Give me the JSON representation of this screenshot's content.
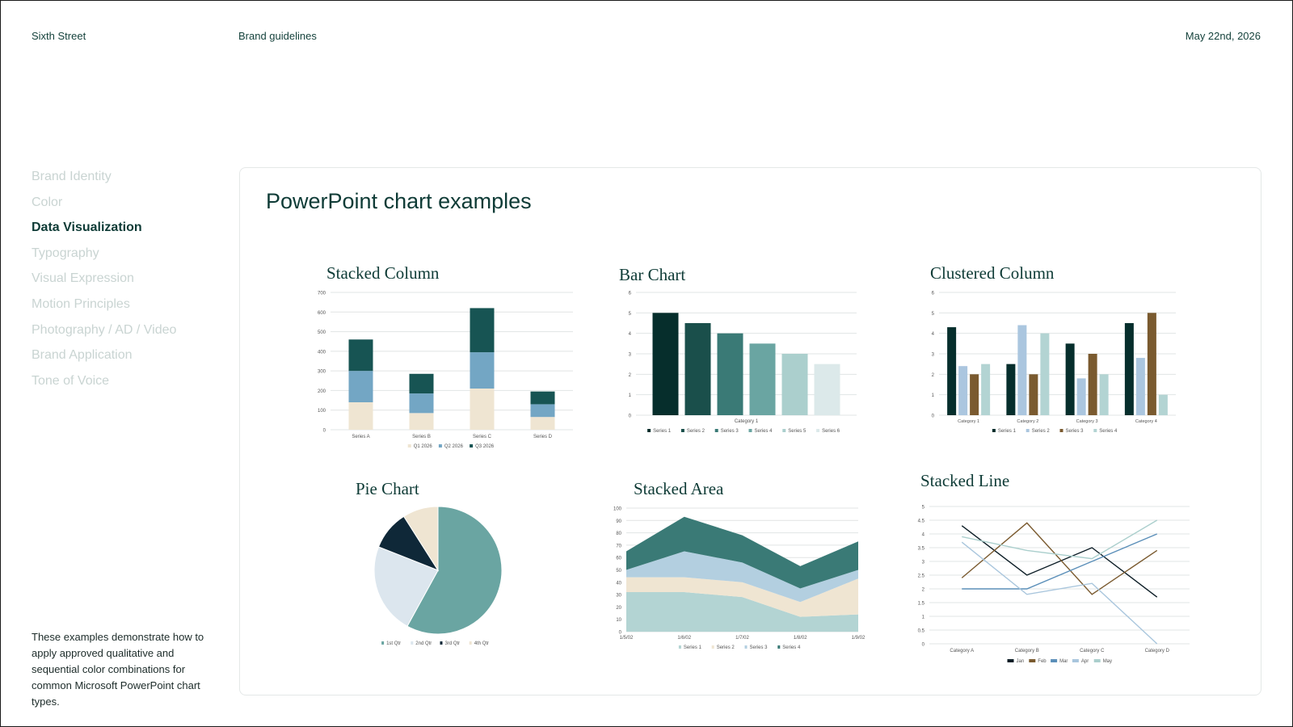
{
  "header": {
    "brand": "Sixth Street",
    "doc_title": "Brand guidelines",
    "date": "May 22nd, 2026"
  },
  "sidebar": {
    "items": [
      {
        "label": "Brand Identity",
        "active": false
      },
      {
        "label": "Color",
        "active": false
      },
      {
        "label": "Data Visualization",
        "active": true
      },
      {
        "label": "Typography",
        "active": false
      },
      {
        "label": "Visual Expression",
        "active": false
      },
      {
        "label": "Motion Principles",
        "active": false
      },
      {
        "label": "Photography / AD / Video",
        "active": false
      },
      {
        "label": "Brand Application",
        "active": false
      },
      {
        "label": "Tone of Voice",
        "active": false
      }
    ],
    "note": "These examples demonstrate how to apply approved qualitative and sequential color combinations for common Microsoft PowerPoint chart types."
  },
  "main": {
    "title": "PowerPoint chart examples"
  },
  "colors": {
    "palette6": [
      "#062e2c",
      "#1a4f4b",
      "#3a7a76",
      "#6aa5a2",
      "#abcfcd",
      "#dce9ea"
    ],
    "cream": "#efe5d2",
    "steel": "#73a6c4",
    "darkteal": "#175453",
    "brown": "#7a5a2f",
    "lightblue": "#abc6df",
    "paleaqua": "#b3d4d3",
    "navy": "#0f2838"
  },
  "chart_data": [
    {
      "id": "stacked-column",
      "type": "bar",
      "stacked": true,
      "title": "Stacked Column",
      "categories": [
        "Series A",
        "Series B",
        "Series C",
        "Series D"
      ],
      "series": [
        {
          "name": "Q1 2026",
          "values": [
            140,
            85,
            210,
            65
          ],
          "color": "#efe5d2"
        },
        {
          "name": "Q2 2026",
          "values": [
            160,
            100,
            185,
            65
          ],
          "color": "#73a6c4"
        },
        {
          "name": "Q3 2026",
          "values": [
            160,
            100,
            225,
            65
          ],
          "color": "#175453"
        }
      ],
      "ylim": [
        0,
        700
      ],
      "yticks": [
        0,
        100,
        200,
        300,
        400,
        500,
        600,
        700
      ],
      "grid": true,
      "legend": "bottom"
    },
    {
      "id": "bar-chart",
      "type": "bar",
      "title": "Bar Chart",
      "categories": [
        "Category 1"
      ],
      "series": [
        {
          "name": "Series 1",
          "values": [
            5
          ],
          "color": "#062e2c"
        },
        {
          "name": "Series 2",
          "values": [
            4.5
          ],
          "color": "#1a4f4b"
        },
        {
          "name": "Series 3",
          "values": [
            4
          ],
          "color": "#3a7a76"
        },
        {
          "name": "Series 4",
          "values": [
            3.5
          ],
          "color": "#6aa5a2"
        },
        {
          "name": "Series 5",
          "values": [
            3
          ],
          "color": "#abcfcd"
        },
        {
          "name": "Series 6",
          "values": [
            2.5
          ],
          "color": "#dce9ea"
        }
      ],
      "ylim": [
        0,
        6
      ],
      "yticks": [
        0,
        1,
        2,
        3,
        4,
        5,
        6
      ],
      "grid": true,
      "legend": "bottom"
    },
    {
      "id": "clustered-column",
      "type": "bar",
      "title": "Clustered Column",
      "categories": [
        "Category 1",
        "Category 2",
        "Category 3",
        "Category 4"
      ],
      "series": [
        {
          "name": "Series 1",
          "values": [
            4.3,
            2.5,
            3.5,
            4.5
          ],
          "color": "#062e2c"
        },
        {
          "name": "Series 2",
          "values": [
            2.4,
            4.4,
            1.8,
            2.8
          ],
          "color": "#abc6df"
        },
        {
          "name": "Series 3",
          "values": [
            2,
            2,
            3,
            5
          ],
          "color": "#7a5a2f"
        },
        {
          "name": "Series 4",
          "values": [
            2.5,
            4,
            2,
            1
          ],
          "color": "#b3d4d3"
        }
      ],
      "ylim": [
        0,
        6
      ],
      "yticks": [
        0,
        1,
        2,
        3,
        4,
        5,
        6
      ],
      "grid": true,
      "legend": "bottom"
    },
    {
      "id": "pie-chart",
      "type": "pie",
      "title": "Pie Chart",
      "categories": [
        "1st Qtr",
        "2nd Qtr",
        "3rd Qtr",
        "4th Qtr"
      ],
      "values": [
        58,
        23,
        10,
        9
      ],
      "colors": [
        "#6aa5a2",
        "#dce6ee",
        "#0f2838",
        "#efe5d2"
      ],
      "legend": "bottom"
    },
    {
      "id": "stacked-area",
      "type": "area",
      "stacked": true,
      "title": "Stacked Area",
      "x": [
        "1/5/02",
        "1/6/02",
        "1/7/02",
        "1/8/02",
        "1/9/02"
      ],
      "series": [
        {
          "name": "Series 1",
          "values": [
            32,
            32,
            28,
            12,
            14
          ],
          "color": "#b3d4d3"
        },
        {
          "name": "Series 2",
          "values": [
            12,
            12,
            12,
            12,
            29
          ],
          "color": "#efe5d2"
        },
        {
          "name": "Series 3",
          "values": [
            6,
            21,
            16,
            11,
            7
          ],
          "color": "#b3cfe0"
        },
        {
          "name": "Series 4",
          "values": [
            15,
            28,
            22,
            18,
            23
          ],
          "color": "#3a7a76"
        }
      ],
      "ylim": [
        0,
        100
      ],
      "yticks": [
        0,
        10,
        20,
        30,
        40,
        50,
        60,
        70,
        80,
        90,
        100
      ],
      "grid": true,
      "legend": "bottom"
    },
    {
      "id": "stacked-line",
      "type": "line",
      "title": "Stacked Line",
      "categories": [
        "Category A",
        "Category B",
        "Category C",
        "Category D"
      ],
      "series": [
        {
          "name": "Jan",
          "values": [
            4.3,
            2.5,
            3.5,
            1.7
          ],
          "color": "#0c1d26"
        },
        {
          "name": "Feb",
          "values": [
            2.4,
            4.4,
            1.8,
            3.4
          ],
          "color": "#7a5a2f"
        },
        {
          "name": "Mar",
          "values": [
            2,
            2,
            3,
            4
          ],
          "color": "#5b8fb9"
        },
        {
          "name": "Apr",
          "values": [
            3.7,
            1.8,
            2.2,
            0
          ],
          "color": "#a9c6dd"
        },
        {
          "name": "May",
          "values": [
            3.9,
            3.4,
            3.1,
            4.5
          ],
          "color": "#abcfcd"
        }
      ],
      "ylim": [
        0,
        5
      ],
      "yticks": [
        0,
        0.5,
        1,
        1.5,
        2,
        2.5,
        3,
        3.5,
        4,
        4.5,
        5
      ],
      "grid": true,
      "legend": "bottom"
    }
  ]
}
